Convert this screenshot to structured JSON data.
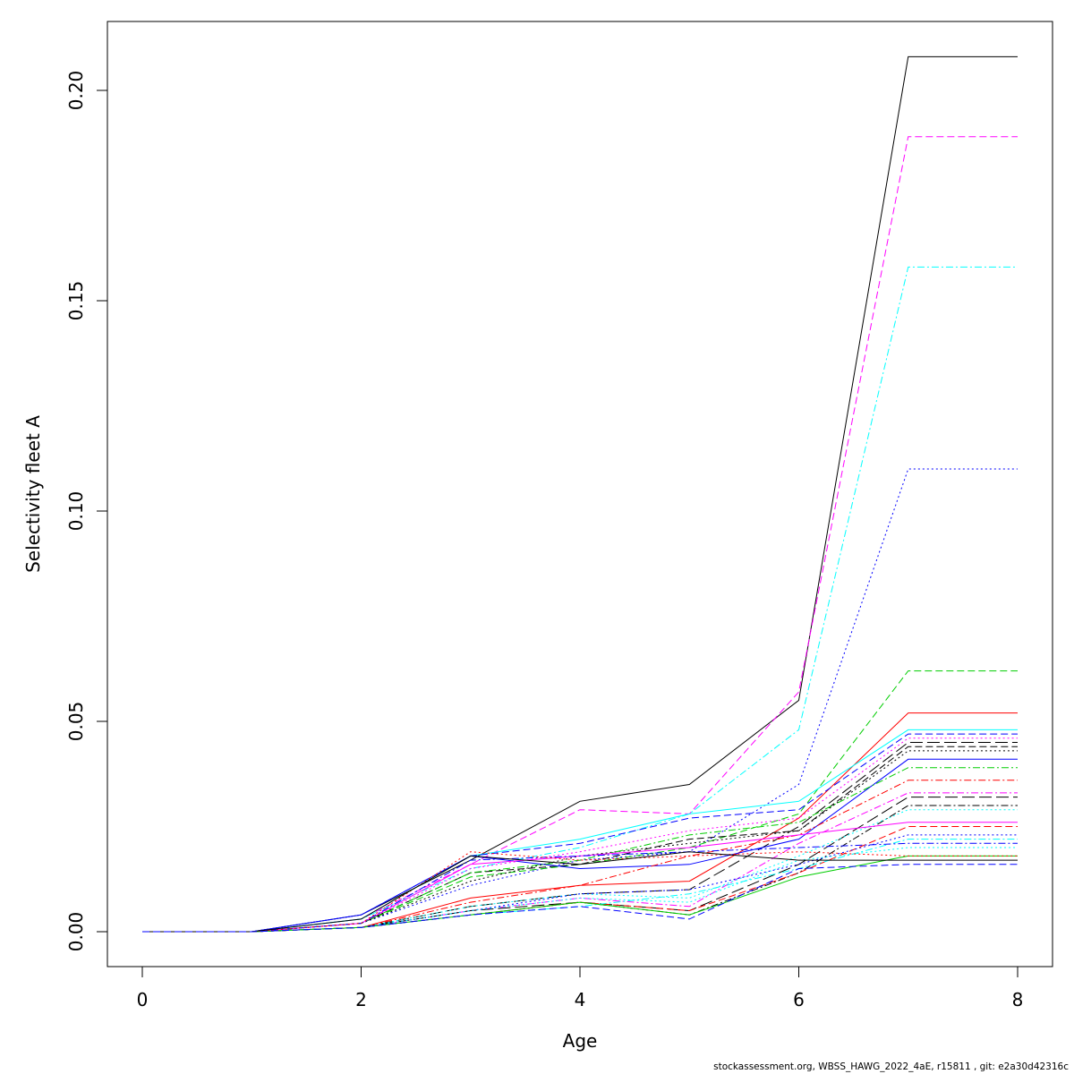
{
  "chart_data": {
    "type": "line",
    "title": "",
    "xlabel": "Age",
    "ylabel": "Selectivity fleet A",
    "xlim": [
      0,
      8
    ],
    "ylim": [
      0,
      0.21
    ],
    "x_ticks": [
      "0",
      "2",
      "4",
      "6",
      "8"
    ],
    "y_ticks": [
      "0.00",
      "0.05",
      "0.10",
      "0.15",
      "0.20"
    ],
    "x": [
      0,
      1,
      2,
      3,
      4,
      5,
      6,
      7,
      8
    ],
    "grid": false,
    "legend": "none",
    "series": [
      {
        "color": "#000000",
        "dash": "solid",
        "values": [
          0,
          0,
          0.004,
          0.017,
          0.031,
          0.035,
          0.055,
          0.208,
          0.208
        ]
      },
      {
        "color": "#ff00ff",
        "dash": "dashed",
        "values": [
          0,
          0,
          0.003,
          0.016,
          0.029,
          0.028,
          0.057,
          0.189,
          0.189
        ]
      },
      {
        "color": "#00ffff",
        "dash": "dashdot",
        "values": [
          0,
          0,
          0.003,
          0.015,
          0.02,
          0.028,
          0.048,
          0.158,
          0.158
        ]
      },
      {
        "color": "#0000ff",
        "dash": "dotted",
        "values": [
          0,
          0,
          0.002,
          0.011,
          0.017,
          0.019,
          0.035,
          0.11,
          0.11
        ]
      },
      {
        "color": "#00cd00",
        "dash": "dashed",
        "values": [
          0,
          0,
          0.002,
          0.013,
          0.016,
          0.02,
          0.028,
          0.062,
          0.062
        ]
      },
      {
        "color": "#ff0000",
        "dash": "solid",
        "values": [
          0,
          0,
          0.001,
          0.008,
          0.011,
          0.012,
          0.027,
          0.052,
          0.052
        ]
      },
      {
        "color": "#00ffff",
        "dash": "solid",
        "values": [
          0,
          0,
          0.003,
          0.018,
          0.022,
          0.028,
          0.031,
          0.048,
          0.048
        ]
      },
      {
        "color": "#0000ff",
        "dash": "dashed",
        "values": [
          0,
          0,
          0.004,
          0.018,
          0.021,
          0.027,
          0.029,
          0.047,
          0.047
        ]
      },
      {
        "color": "#ff00ff",
        "dash": "dotted",
        "values": [
          0,
          0,
          0.002,
          0.015,
          0.019,
          0.024,
          0.027,
          0.046,
          0.046
        ]
      },
      {
        "color": "#000000",
        "dash": "longdash",
        "values": [
          0,
          0,
          0.001,
          0.006,
          0.009,
          0.01,
          0.025,
          0.045,
          0.045
        ]
      },
      {
        "color": "#000000",
        "dash": "dashed",
        "values": [
          0,
          0,
          0.002,
          0.014,
          0.016,
          0.022,
          0.024,
          0.044,
          0.044
        ]
      },
      {
        "color": "#000000",
        "dash": "dotted",
        "values": [
          0,
          0,
          0.002,
          0.012,
          0.018,
          0.021,
          0.024,
          0.043,
          0.043
        ]
      },
      {
        "color": "#0000ff",
        "dash": "solid",
        "values": [
          0,
          0,
          0.004,
          0.018,
          0.015,
          0.016,
          0.022,
          0.041,
          0.041
        ]
      },
      {
        "color": "#00cd00",
        "dash": "dashdot",
        "values": [
          0,
          0,
          0.002,
          0.014,
          0.017,
          0.023,
          0.026,
          0.039,
          0.039
        ]
      },
      {
        "color": "#ff0000",
        "dash": "dashdot",
        "values": [
          0,
          0,
          0.001,
          0.007,
          0.011,
          0.018,
          0.023,
          0.036,
          0.036
        ]
      },
      {
        "color": "#ff00ff",
        "dash": "dashdot",
        "values": [
          0,
          0,
          0.001,
          0.005,
          0.008,
          0.006,
          0.021,
          0.033,
          0.033
        ]
      },
      {
        "color": "#000000",
        "dash": "longdash",
        "values": [
          0,
          0,
          0.001,
          0.005,
          0.007,
          0.005,
          0.016,
          0.032,
          0.032
        ]
      },
      {
        "color": "#000000",
        "dash": "dashdot",
        "values": [
          0,
          0,
          0.001,
          0.004,
          0.007,
          0.004,
          0.014,
          0.03,
          0.03
        ]
      },
      {
        "color": "#00ffff",
        "dash": "dotted",
        "values": [
          0,
          0,
          0.001,
          0.006,
          0.009,
          0.008,
          0.018,
          0.029,
          0.029
        ]
      },
      {
        "color": "#ff00ff",
        "dash": "solid",
        "values": [
          0,
          0,
          0.002,
          0.016,
          0.018,
          0.02,
          0.023,
          0.026,
          0.026
        ]
      },
      {
        "color": "#ff0000",
        "dash": "dashed",
        "values": [
          0,
          0,
          0.001,
          0.004,
          0.007,
          0.005,
          0.014,
          0.025,
          0.025
        ]
      },
      {
        "color": "#0000ff",
        "dash": "dotted",
        "values": [
          0,
          0,
          0.001,
          0.005,
          0.009,
          0.01,
          0.016,
          0.023,
          0.023
        ]
      },
      {
        "color": "#00ffff",
        "dash": "dashdot",
        "values": [
          0,
          0,
          0.001,
          0.004,
          0.006,
          0.009,
          0.015,
          0.022,
          0.022
        ]
      },
      {
        "color": "#0000ff",
        "dash": "dashdot",
        "values": [
          0,
          0,
          0.002,
          0.017,
          0.018,
          0.019,
          0.02,
          0.021,
          0.021
        ]
      },
      {
        "color": "#00ffff",
        "dash": "dotted",
        "values": [
          0,
          0,
          0.001,
          0.005,
          0.008,
          0.007,
          0.017,
          0.02,
          0.02
        ]
      },
      {
        "color": "#00cd00",
        "dash": "solid",
        "values": [
          0,
          0,
          0.001,
          0.004,
          0.007,
          0.004,
          0.013,
          0.018,
          0.018
        ]
      },
      {
        "color": "#ff0000",
        "dash": "dotted",
        "values": [
          0,
          0,
          0.002,
          0.019,
          0.017,
          0.018,
          0.019,
          0.018,
          0.018
        ]
      },
      {
        "color": "#000000",
        "dash": "solid",
        "values": [
          0,
          0,
          0.003,
          0.018,
          0.016,
          0.019,
          0.017,
          0.017,
          0.017
        ]
      },
      {
        "color": "#0000ff",
        "dash": "dashed",
        "values": [
          0,
          0,
          0.001,
          0.004,
          0.006,
          0.003,
          0.015,
          0.016,
          0.016
        ]
      }
    ]
  },
  "footer": {
    "text": "stockassessment.org, WBSS_HAWG_2022_4aE, r15811 , git: e2a30d42316c"
  }
}
